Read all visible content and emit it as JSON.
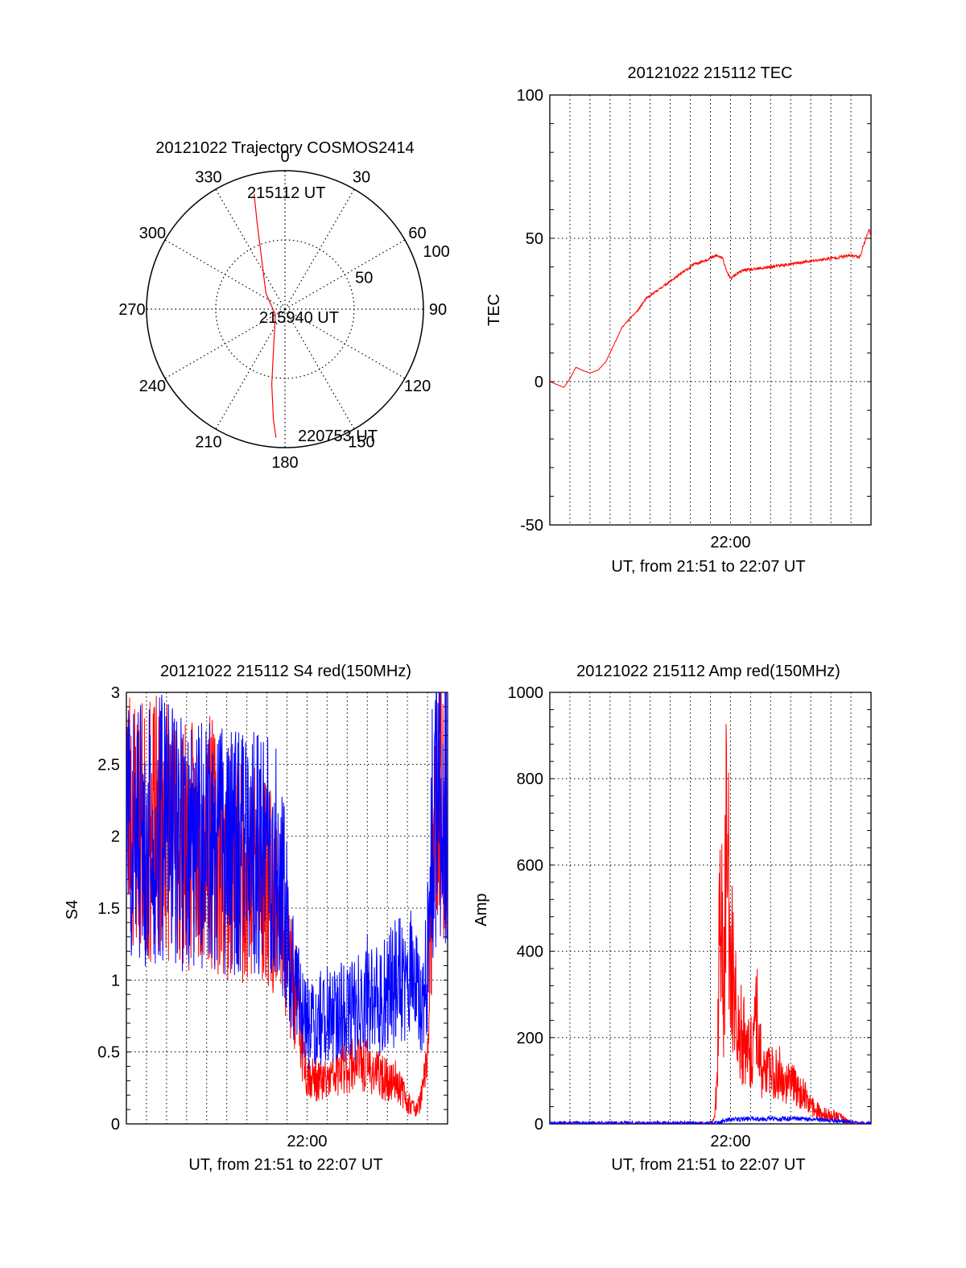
{
  "chart_data": [
    {
      "type": "polar-trajectory",
      "title": "20121022 Trajectory COSMOS2414",
      "azimuth_ticks": [
        0,
        30,
        60,
        90,
        120,
        150,
        180,
        210,
        240,
        270,
        300,
        330
      ],
      "radial_ticks": [
        50,
        100
      ],
      "radial_range": [
        0,
        100
      ],
      "grid": "dotted",
      "annotations": [
        "215112 UT",
        "215940 UT",
        "220753 UT"
      ],
      "series": [
        {
          "color": "#ff0000",
          "points": [
            {
              "az": 345,
              "r": 86
            },
            {
              "az": 342,
              "r": 65
            },
            {
              "az": 336,
              "r": 42
            },
            {
              "az": 310,
              "r": 18
            },
            {
              "az": 240,
              "r": 8
            },
            {
              "az": 196,
              "r": 30
            },
            {
              "az": 190,
              "r": 55
            },
            {
              "az": 186,
              "r": 80
            },
            {
              "az": 184,
              "r": 93
            }
          ]
        }
      ]
    },
    {
      "type": "line",
      "title": "20121022 215112 TEC",
      "xlabel": "UT, from 21:51 to 22:07 UT",
      "ylabel": "TEC",
      "xlim": [
        0,
        16
      ],
      "ylim": [
        -50,
        100
      ],
      "yticks": [
        -50,
        0,
        50,
        100
      ],
      "xticks": [
        {
          "value": 9,
          "label": "22:00"
        }
      ],
      "grid": "dotted",
      "series": [
        {
          "color": "#ff0000",
          "x": [
            0,
            0.35,
            0.7,
            1.0,
            1.3,
            1.6,
            2.0,
            2.4,
            2.8,
            3.2,
            3.6,
            4.0,
            4.4,
            4.8,
            5.2,
            5.6,
            6.0,
            6.4,
            6.8,
            7.2,
            7.6,
            8.0,
            8.3,
            8.6,
            8.75,
            8.9,
            9.05,
            9.2,
            9.4,
            9.7,
            10.0,
            10.5,
            11.0,
            12.0,
            13.0,
            14.0,
            15.0,
            15.45,
            15.6,
            15.8,
            15.9,
            16.0
          ],
          "y": [
            0,
            -1,
            -2,
            1,
            5,
            4,
            3,
            4,
            7,
            13,
            19,
            22,
            25,
            29,
            31,
            33,
            35,
            37,
            39,
            41,
            42,
            43,
            44,
            43,
            40,
            37,
            36,
            37,
            38,
            39,
            39,
            39.5,
            40,
            41,
            42,
            43,
            44,
            43.5,
            47,
            51,
            53,
            51
          ]
        }
      ]
    },
    {
      "type": "line",
      "title": "20121022 215112 S4 red(150MHz)",
      "xlabel": "UT, from 21:51 to 22:07 UT",
      "ylabel": "S4",
      "xlim": [
        0,
        16
      ],
      "ylim": [
        0,
        3
      ],
      "yticks": [
        0,
        0.5,
        1,
        1.5,
        2,
        2.5,
        3
      ],
      "xticks": [
        {
          "value": 9,
          "label": "22:00"
        }
      ],
      "grid": "dotted",
      "series": [
        {
          "color": "#ff0000",
          "x": [
            0,
            1,
            2,
            3,
            4,
            5,
            6,
            7,
            7.6,
            8,
            8.2,
            8.5,
            8.7,
            9,
            9.5,
            10,
            10.5,
            11,
            11.5,
            12,
            12.5,
            13,
            13.5,
            14,
            14.5,
            14.8,
            15,
            15.2,
            15.5,
            16
          ],
          "y": [
            2.2,
            2.0,
            2.1,
            1.9,
            2.0,
            1.8,
            1.8,
            1.7,
            1.6,
            1.3,
            1.0,
            0.8,
            0.6,
            0.35,
            0.3,
            0.3,
            0.35,
            0.4,
            0.45,
            0.4,
            0.35,
            0.3,
            0.3,
            0.15,
            0.1,
            0.25,
            0.5,
            1.5,
            2.2,
            2.3
          ]
        },
        {
          "color": "#0000ff",
          "x": [
            0,
            1,
            2,
            3,
            4,
            5,
            6,
            7,
            7.6,
            8,
            8.2,
            8.5,
            8.7,
            9,
            9.5,
            10,
            10.5,
            11,
            11.5,
            12,
            12.5,
            13,
            13.5,
            14,
            14.5,
            14.8,
            15,
            15.2,
            15.5,
            16
          ],
          "y": [
            2.1,
            2.0,
            2.1,
            1.9,
            2.0,
            1.9,
            1.9,
            1.9,
            1.8,
            1.4,
            1.1,
            0.95,
            0.75,
            0.7,
            0.7,
            0.8,
            0.8,
            0.75,
            0.8,
            0.9,
            0.85,
            0.9,
            1.0,
            1.1,
            0.9,
            0.8,
            1.2,
            2.0,
            2.3,
            2.2
          ]
        }
      ]
    },
    {
      "type": "line",
      "title": "20121022 215112 Amp red(150MHz)",
      "xlabel": "UT, from 21:51 to 22:07 UT",
      "ylabel": "Amp",
      "xlim": [
        0,
        16
      ],
      "ylim": [
        0,
        1000
      ],
      "yticks": [
        0,
        200,
        400,
        600,
        800,
        1000
      ],
      "xticks": [
        {
          "value": 9,
          "label": "22:00"
        }
      ],
      "grid": "dotted",
      "series": [
        {
          "color": "#ff0000",
          "x": [
            0,
            8,
            8.2,
            8.35,
            8.5,
            8.65,
            8.8,
            9.0,
            9.2,
            9.4,
            9.6,
            9.8,
            10.0,
            10.3,
            10.6,
            11.0,
            11.4,
            11.8,
            12.2,
            12.6,
            13.0,
            13.5,
            14.0,
            14.5,
            15.0,
            16
          ],
          "y": [
            0,
            0,
            10,
            120,
            580,
            300,
            640,
            420,
            300,
            240,
            200,
            170,
            150,
            260,
            120,
            110,
            130,
            90,
            90,
            70,
            40,
            25,
            20,
            15,
            0,
            0
          ]
        },
        {
          "color": "#0000ff",
          "x": [
            0,
            8,
            8.5,
            9,
            10,
            11,
            12,
            13,
            14,
            14.8,
            15.2,
            16
          ],
          "y": [
            2,
            2,
            5,
            10,
            12,
            12,
            12,
            10,
            8,
            6,
            2,
            2
          ]
        }
      ]
    }
  ]
}
